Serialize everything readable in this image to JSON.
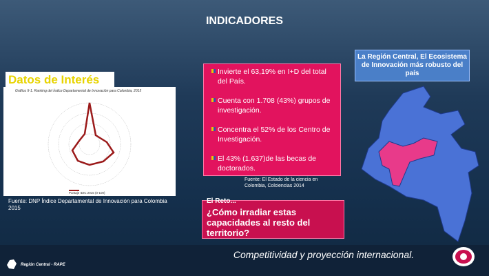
{
  "header": {
    "title": "INDICADORES"
  },
  "left": {
    "heading": "Datos de Interés",
    "chart_title": "Gráfico II-1. Ranking del Índice Departamental de Innovación para Colombia, 2015",
    "chart_legend": "Puntaje IDIC 2015 (0-100)",
    "source": "Fuente: DNP Índice Departamental de Innovación para Colombia 2015"
  },
  "facts": {
    "items": [
      "Invierte el 63,19% en I+D del total del País.",
      "Cuenta con 1.708 (43%) grupos de investigación.",
      "Concentra el 52% de los Centro de Investigación.",
      "El 43% (1.637)de las becas de doctorados."
    ],
    "source": "Fuente: El Estado de la ciencia en Colombia, Colciencias 2014"
  },
  "challenge": {
    "label": "El Reto...",
    "question": "¿Cómo irradiar estas capacidades al resto del territorio?"
  },
  "region": {
    "callout": "La Región Central, El Ecosistema de Innovación más robusto del país"
  },
  "footer": {
    "org": "Región Central - RAPE",
    "slogan": "Competitividad y proyección internacional."
  }
}
